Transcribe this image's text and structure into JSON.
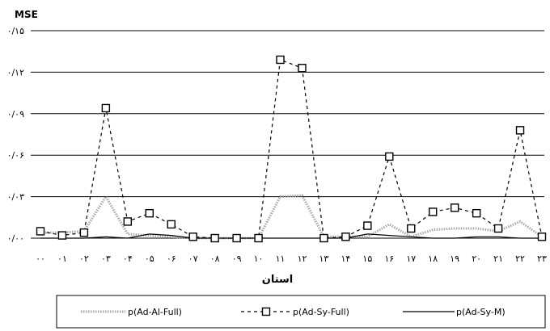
{
  "chart_data": {
    "type": "line",
    "ylabel": "MSE",
    "xlabel": "استان",
    "ylim": [
      0,
      0.15
    ],
    "yticks": [
      0,
      0.03,
      0.06,
      0.09,
      0.12,
      0.15
    ],
    "ytick_labels": [
      "۰/۰۰",
      "۰/۰۳",
      "۰/۰۶",
      "۰/۰۹",
      "۰/۱۲",
      "۰/۱۵"
    ],
    "categories": [
      "۰۰",
      "۰۱",
      "۰۲",
      "۰۳",
      "۰۴",
      "۰۵",
      "۰۶",
      "۰۷",
      "۰۸",
      "۰۹",
      "۱۰",
      "۱۱",
      "۱۲",
      "۱۳",
      "۱۴",
      "۱۵",
      "۱۶",
      "۱۷",
      "۱۸",
      "۱۹",
      "۲۰",
      "۲۱",
      "۲۲",
      "۲۳"
    ],
    "grid": "horizontal",
    "legend_position": "bottom",
    "series": [
      {
        "name": "p(Ad-Al-Full)",
        "style": "dotted-gray",
        "color": "#9a9a9a",
        "values": [
          0.004,
          0.004,
          0.005,
          0.03,
          0.003,
          0.002,
          0.001,
          0.0,
          0.0,
          0.0,
          0.0,
          0.03,
          0.031,
          0.001,
          0.001,
          0.001,
          0.01,
          0.001,
          0.006,
          0.007,
          0.007,
          0.005,
          0.012,
          0.001
        ]
      },
      {
        "name": "p(Ad-Sy-Full)",
        "style": "dashed-square-markers",
        "color": "#000000",
        "values": [
          0.005,
          0.002,
          0.004,
          0.094,
          0.012,
          0.018,
          0.01,
          0.001,
          0.0,
          0.0,
          0.0,
          0.129,
          0.123,
          0.0,
          0.001,
          0.009,
          0.059,
          0.007,
          0.019,
          0.022,
          0.018,
          0.007,
          0.078,
          0.001
        ]
      },
      {
        "name": "p(Ad-Sy-M)",
        "style": "solid",
        "color": "#000000",
        "values": [
          0.0,
          0.0,
          0.0,
          0.001,
          0.0,
          0.003,
          0.002,
          0.0,
          0.0,
          0.0,
          0.0,
          0.0,
          0.0,
          0.0,
          0.0,
          0.003,
          0.002,
          0.001,
          0.0,
          0.0,
          0.001,
          0.001,
          0.0,
          0.0
        ]
      }
    ]
  }
}
